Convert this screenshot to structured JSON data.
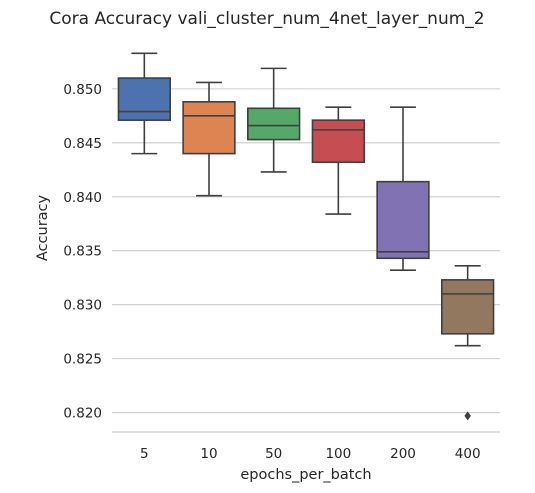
{
  "chart_data": {
    "type": "box",
    "title": "Cora Accuracy vali_cluster_num_4net_layer_num_2",
    "xlabel": "epochs_per_batch",
    "ylabel": "Accuracy",
    "ylim": [
      0.8182,
      0.8549
    ],
    "yticks": [
      0.82,
      0.825,
      0.83,
      0.835,
      0.84,
      0.845,
      0.85
    ],
    "ytick_labels": [
      "0.820",
      "0.825",
      "0.830",
      "0.835",
      "0.840",
      "0.845",
      "0.850"
    ],
    "grid": true,
    "categories": [
      "5",
      "10",
      "50",
      "100",
      "200",
      "400"
    ],
    "boxes": [
      {
        "category": "5",
        "whisker_low": 0.844,
        "q1": 0.8471,
        "median": 0.8479,
        "q3": 0.851,
        "whisker_high": 0.8533,
        "outliers": [],
        "color": "#4c72b0"
      },
      {
        "category": "10",
        "whisker_low": 0.8401,
        "q1": 0.844,
        "median": 0.8475,
        "q3": 0.8488,
        "whisker_high": 0.8506,
        "outliers": [],
        "color": "#dd8452"
      },
      {
        "category": "50",
        "whisker_low": 0.8423,
        "q1": 0.8453,
        "median": 0.8466,
        "q3": 0.8482,
        "whisker_high": 0.8519,
        "outliers": [],
        "color": "#55a868"
      },
      {
        "category": "100",
        "whisker_low": 0.8384,
        "q1": 0.8432,
        "median": 0.8462,
        "q3": 0.8471,
        "whisker_high": 0.8483,
        "outliers": [],
        "color": "#c44e52"
      },
      {
        "category": "200",
        "whisker_low": 0.8332,
        "q1": 0.8343,
        "median": 0.8349,
        "q3": 0.8414,
        "whisker_high": 0.8483,
        "outliers": [],
        "color": "#8172b3"
      },
      {
        "category": "400",
        "whisker_low": 0.8262,
        "q1": 0.8273,
        "median": 0.831,
        "q3": 0.8323,
        "whisker_high": 0.8336,
        "outliers": [
          0.8197
        ],
        "color": "#937860"
      }
    ]
  }
}
